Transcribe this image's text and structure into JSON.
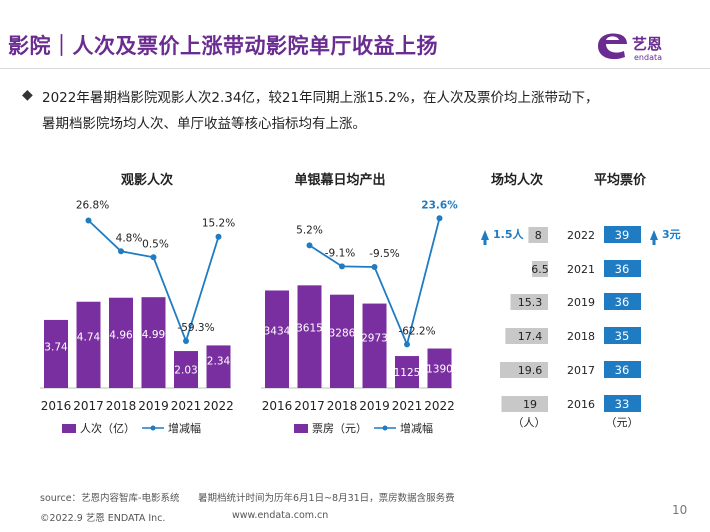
{
  "header": {
    "title": "影院｜人次及票价上涨带动影院单厅收益上扬",
    "logo_text": "艺恩",
    "logo_sub": "endata"
  },
  "summary": {
    "line1": "2022年暑期档影院观影人次2.34亿，较21年同期上涨15.2%，在人次及票价均上涨带动下，",
    "line2": "暑期档影院场均人次、单厅收益等核心指标均有上涨。"
  },
  "colors": {
    "title_purple": "#6a2c91",
    "bar_purple": "#7a2fa0",
    "line_blue": "#1f7bc2",
    "gray_bar": "#c8c8c8",
    "blue_box": "#1f7bc2"
  },
  "chart_data": [
    {
      "type": "bar",
      "title": "观影人次",
      "categories": [
        "2016",
        "2017",
        "2018",
        "2019",
        "2021",
        "2022"
      ],
      "series": [
        {
          "name": "人次（亿）",
          "type": "bar",
          "values": [
            3.74,
            4.74,
            4.96,
            4.99,
            2.03,
            2.34
          ],
          "labels": [
            "3.74",
            "4.74",
            "4.96",
            "4.99",
            "2.03",
            "2.34"
          ]
        },
        {
          "name": "增减幅",
          "type": "line",
          "values": [
            null,
            26.8,
            4.8,
            0.5,
            -59.3,
            15.2
          ],
          "labels": [
            "",
            "26.8%",
            "4.8%",
            "0.5%",
            "-59.3%",
            "15.2%"
          ]
        }
      ]
    },
    {
      "type": "bar",
      "title": "单银幕日均产出",
      "categories": [
        "2016",
        "2017",
        "2018",
        "2019",
        "2021",
        "2022"
      ],
      "series": [
        {
          "name": "票房（元）",
          "type": "bar",
          "values": [
            3434,
            3615,
            3286,
            2973,
            1125,
            1390
          ],
          "labels": [
            "3434",
            "3615",
            "3286",
            "2973",
            "1125",
            "1390"
          ]
        },
        {
          "name": "增减幅",
          "type": "line",
          "values": [
            null,
            5.2,
            -9.1,
            -9.5,
            -62.2,
            23.6
          ],
          "labels": [
            "",
            "5.2%",
            "-9.1%",
            "-9.5%",
            "-62.2%",
            "23.6%"
          ]
        }
      ]
    },
    {
      "type": "bar",
      "title": "场均人次",
      "unit": "（人）",
      "categories": [
        "2022",
        "2021",
        "2019",
        "2018",
        "2017",
        "2016"
      ],
      "values": [
        8,
        6.5,
        15.3,
        17.4,
        19.6,
        19
      ],
      "labels": [
        "8",
        "6.5",
        "15.3",
        "17.4",
        "19.6",
        "19"
      ],
      "annotation": "1.5人"
    },
    {
      "type": "table",
      "title": "平均票价",
      "unit": "（元）",
      "categories": [
        "2022",
        "2021",
        "2019",
        "2018",
        "2017",
        "2016"
      ],
      "values": [
        39,
        36,
        36,
        35,
        36,
        33
      ],
      "labels": [
        "39",
        "36",
        "36",
        "35",
        "36",
        "33"
      ],
      "annotation": "3元"
    }
  ],
  "footer": {
    "source": "source：艺恩内容智库-电影系统",
    "note": "暑期档统计时间为历年6月1日~8月31日，票房数据含服务费",
    "copyright": "©2022.9 艺恩 ENDATA Inc.",
    "website": "www.endata.com.cn",
    "page": "10"
  }
}
